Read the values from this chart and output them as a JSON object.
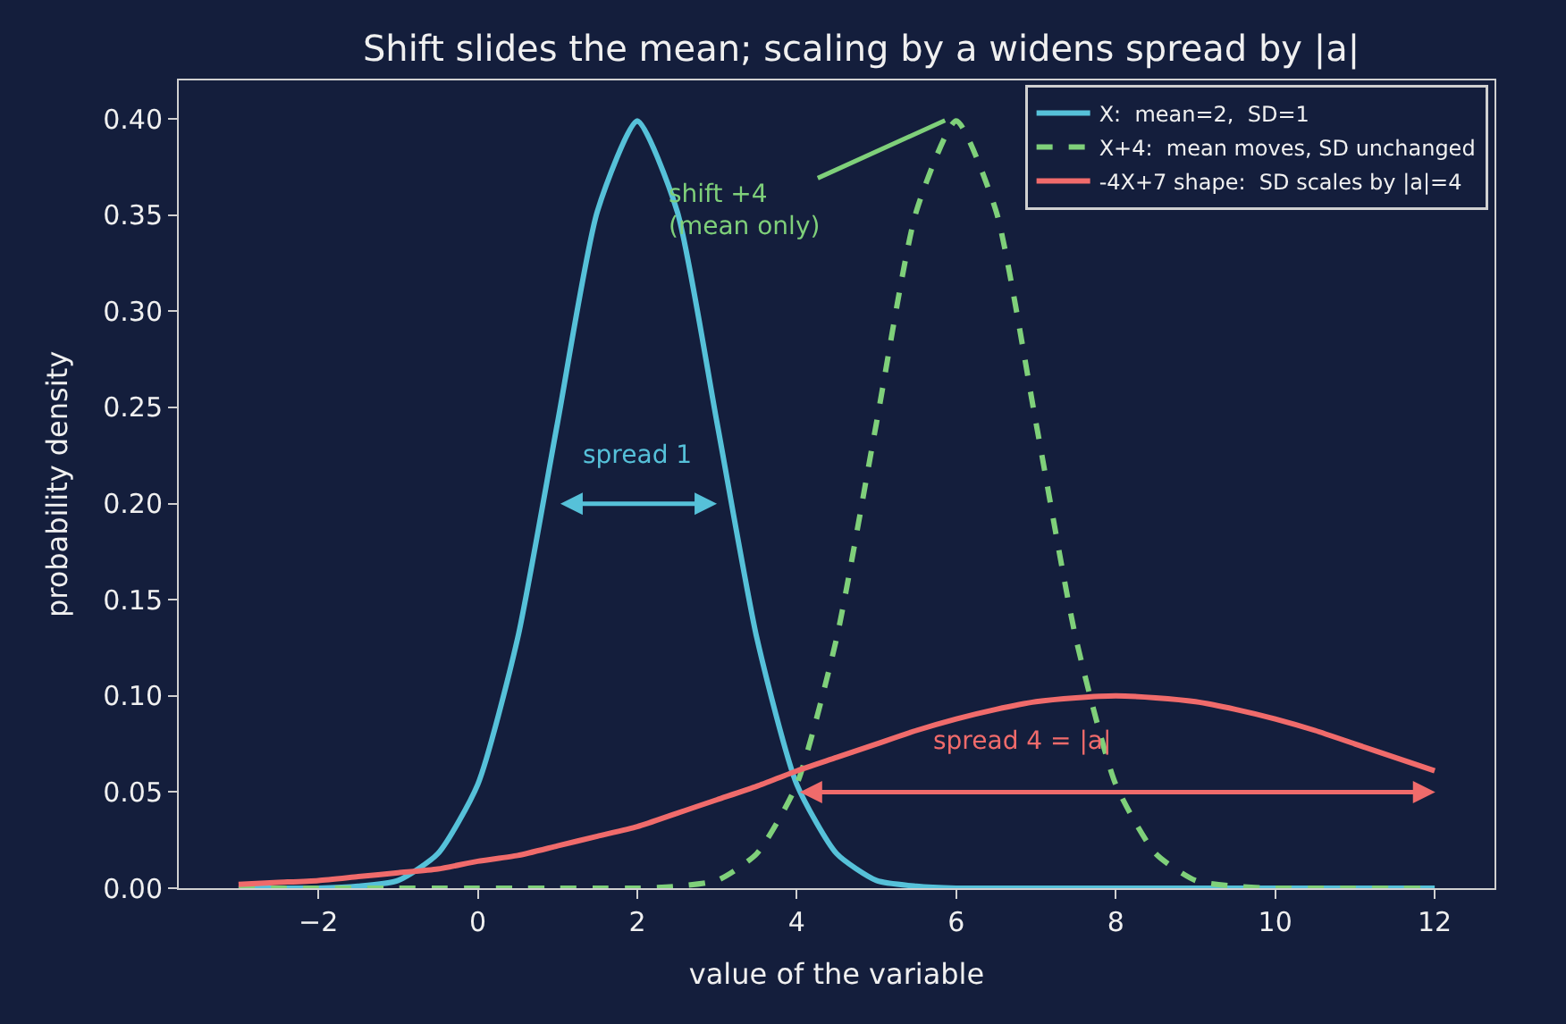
{
  "chart_data": {
    "type": "line",
    "title": "Shift slides the mean; scaling by a widens spread by |a|",
    "xlabel": "value of the variable",
    "ylabel": "probability density",
    "x": [
      -3,
      -2.5,
      -2,
      -1.5,
      -1,
      -0.5,
      0,
      0.5,
      1,
      1.5,
      2,
      2.5,
      3,
      3.5,
      4,
      4.5,
      5,
      5.5,
      6,
      6.5,
      7,
      7.5,
      8,
      8.5,
      9,
      9.5,
      10,
      10.5,
      11,
      11.5,
      12
    ],
    "series": [
      {
        "name": "X:  mean=2,  SD=1",
        "color": "#56c1d9",
        "line_style": "solid",
        "values": [
          0,
          0,
          0,
          0.001,
          0.004,
          0.018,
          0.054,
          0.13,
          0.242,
          0.352,
          0.399,
          0.352,
          0.242,
          0.13,
          0.054,
          0.018,
          0.004,
          0.001,
          0,
          0,
          0,
          0,
          0,
          0,
          0,
          0,
          0,
          0,
          0,
          0,
          0
        ]
      },
      {
        "name": "X+4:  mean moves, SD unchanged",
        "color": "#7fd07a",
        "line_style": "dashed",
        "values": [
          0,
          0,
          0,
          0,
          0,
          0,
          0,
          0,
          0,
          0,
          0,
          0.001,
          0.004,
          0.018,
          0.054,
          0.13,
          0.242,
          0.352,
          0.399,
          0.352,
          0.242,
          0.13,
          0.054,
          0.018,
          0.004,
          0.001,
          0,
          0,
          0,
          0,
          0
        ]
      },
      {
        "name": "-4X+7 shape:  SD scales by |a|=4",
        "color": "#f06b6b",
        "line_style": "solid",
        "values": [
          0.002,
          0.003,
          0.004,
          0.006,
          0.008,
          0.01,
          0.014,
          0.017,
          0.022,
          0.027,
          0.032,
          0.039,
          0.046,
          0.053,
          0.061,
          0.068,
          0.075,
          0.082,
          0.088,
          0.093,
          0.097,
          0.099,
          0.1,
          0.099,
          0.097,
          0.093,
          0.088,
          0.082,
          0.075,
          0.068,
          0.061
        ]
      }
    ],
    "annotations": [
      "spread 1",
      {
        "text": "shift +4\n(mean only)",
        "x": 5.9,
        "y": 0.4
      },
      "spread 4 = |a|"
    ],
    "xlim": [
      -3.75,
      12.75
    ],
    "xticks": [
      {
        "value": -2,
        "label": "−2"
      },
      0,
      2,
      4,
      6,
      8,
      10,
      12
    ],
    "ylim": [
      0,
      0.42
    ],
    "yticks": [
      {
        "value": 0,
        "label": "0.00"
      },
      0.05,
      {
        "value": 0.1,
        "label": "0.10"
      },
      0.15,
      {
        "value": 0.2,
        "label": "0.20"
      },
      0.25,
      {
        "value": 0.3,
        "label": "0.30"
      },
      0.35,
      {
        "value": 0.4,
        "label": "0.40"
      }
    ],
    "grid": false,
    "legend": "top right",
    "marker": "none"
  }
}
